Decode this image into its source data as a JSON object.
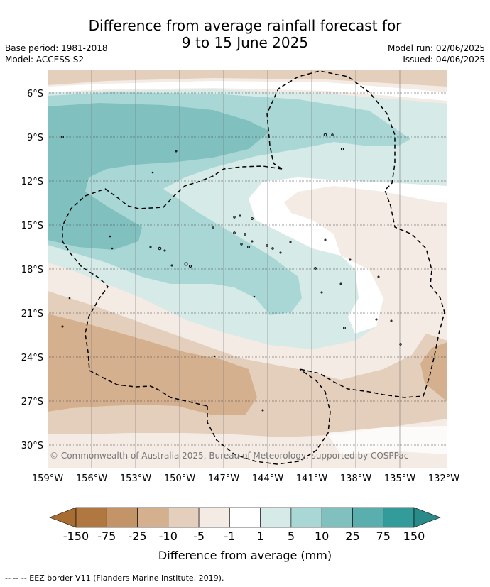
{
  "title": {
    "line1": "Difference from average rainfall forecast for",
    "line2": "9 to 15 June 2025"
  },
  "meta": {
    "base_period": "Base period: 1981-2018",
    "model": "Model: ACCESS-S2",
    "model_run": "Model run: 02/06/2025",
    "issued": "Issued: 04/06/2025"
  },
  "map": {
    "lon_labels": [
      "159°W",
      "156°W",
      "153°W",
      "150°W",
      "147°W",
      "144°W",
      "141°W",
      "138°W",
      "135°W",
      "132°W"
    ],
    "lat_labels": [
      "6°S",
      "9°S",
      "12°S",
      "15°S",
      "18°S",
      "21°S",
      "24°S",
      "27°S",
      "30°S"
    ],
    "copyright": "© Commonwealth of Australia 2025, Bureau of Meteorology, supported by COSPPac"
  },
  "colorbar": {
    "ticks": [
      "-150",
      "-75",
      "-25",
      "-10",
      "-5",
      "-1",
      "1",
      "5",
      "10",
      "25",
      "75",
      "150"
    ],
    "colors": [
      "#b07840",
      "#c39467",
      "#d4b08e",
      "#e4cfbc",
      "#f4ebe5",
      "#ffffff",
      "#d6eae8",
      "#a9d7d5",
      "#80c1bf",
      "#5aaead",
      "#339b99"
    ],
    "extend_low_color": "#a86d33",
    "extend_high_color": "#2a8a88",
    "label": "Difference from average (mm)"
  },
  "footer": "--  --  -- EEZ border V11 (Flanders Marine Institute, 2019)."
}
